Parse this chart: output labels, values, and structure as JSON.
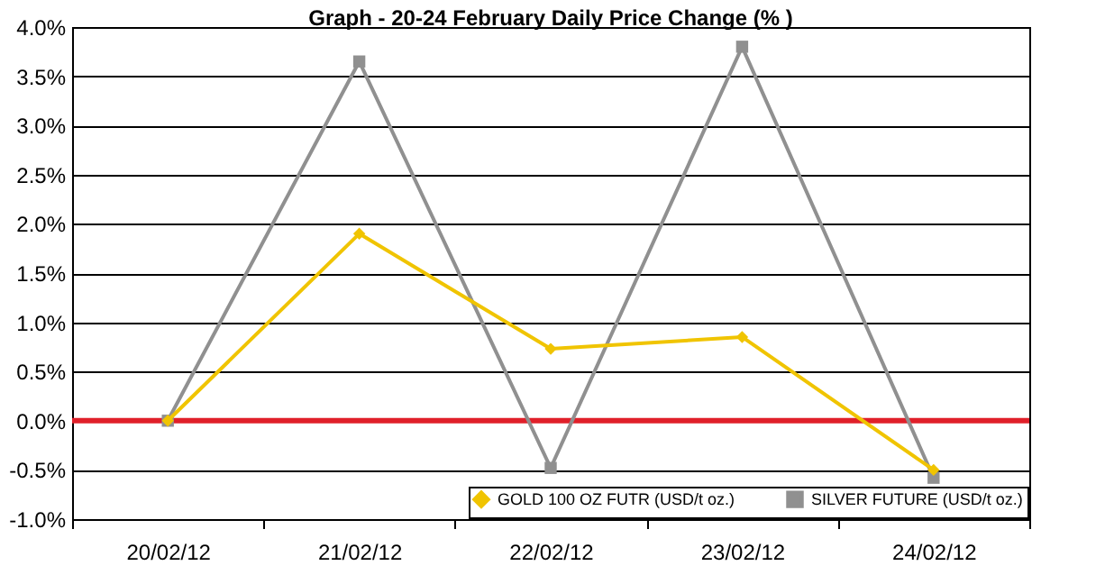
{
  "chart_data": {
    "type": "line",
    "title": "Graph -  20-24 February Daily Price Change (% )",
    "categories": [
      "20/02/12",
      "21/02/12",
      "22/02/12",
      "23/02/12",
      "24/02/12"
    ],
    "series": [
      {
        "name": "GOLD 100 OZ FUTR (USD/t oz.)",
        "color": "#f0c400",
        "marker": "diamond",
        "values": [
          0,
          1.9,
          0.73,
          0.85,
          -0.5
        ]
      },
      {
        "name": "SILVER FUTURE (USD/t oz.)",
        "color": "#909090",
        "marker": "square",
        "values": [
          0,
          3.65,
          -0.48,
          3.8,
          -0.58
        ]
      }
    ],
    "ylim": [
      -1,
      4
    ],
    "yticks": [
      {
        "value": -1,
        "label": "-1.0%"
      },
      {
        "value": -0.5,
        "label": "-0.5%"
      },
      {
        "value": 0,
        "label": "0.0%"
      },
      {
        "value": 0.5,
        "label": "0.5%"
      },
      {
        "value": 1,
        "label": "1.0%"
      },
      {
        "value": 1.5,
        "label": "1.5%"
      },
      {
        "value": 2,
        "label": "2.0%"
      },
      {
        "value": 2.5,
        "label": "2.5%"
      },
      {
        "value": 3,
        "label": "3.0%"
      },
      {
        "value": 3.5,
        "label": "3.5%"
      },
      {
        "value": 4,
        "label": "4.0%"
      }
    ],
    "ref_lines": [
      {
        "axis": "y",
        "value": 0,
        "color": "#e0202a"
      }
    ],
    "grid": "y",
    "legend": "bottom right"
  }
}
